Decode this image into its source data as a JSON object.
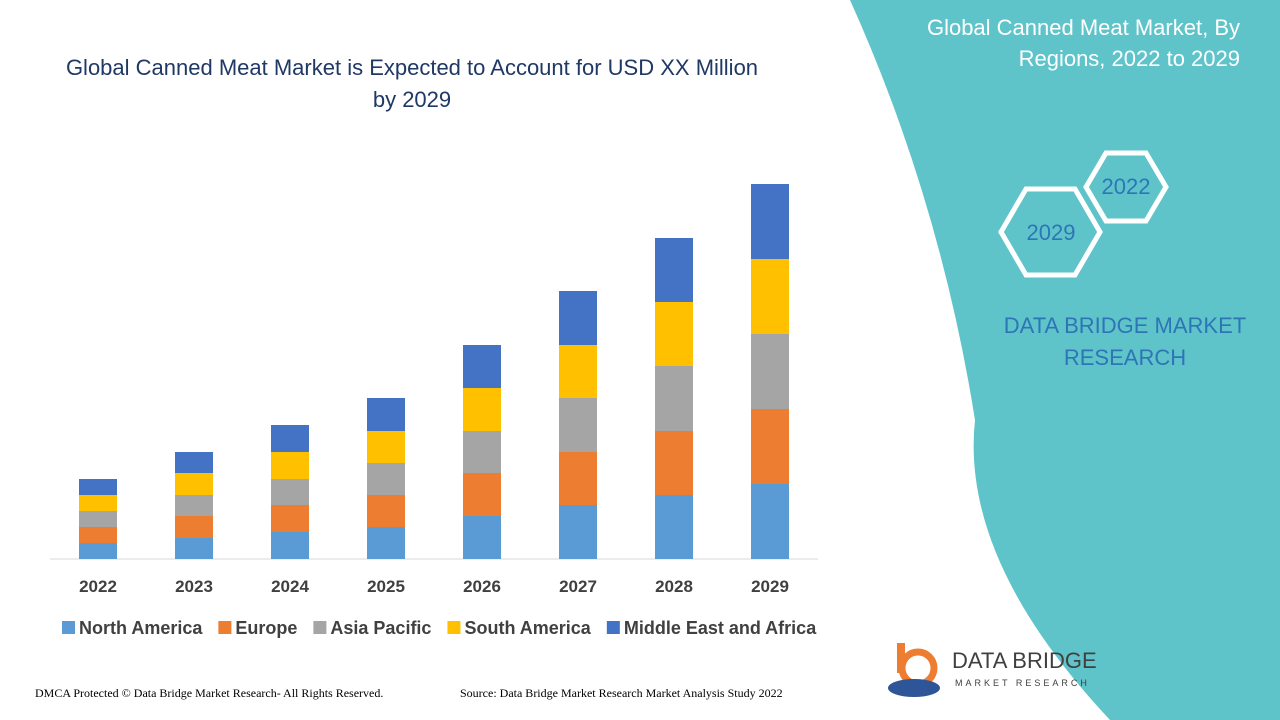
{
  "chart_data": {
    "type": "stacked-bar",
    "title": "Global Canned Meat Market is Expected to Account for USD XX Million by 2029",
    "categories": [
      "2022",
      "2023",
      "2024",
      "2025",
      "2026",
      "2027",
      "2028",
      "2029"
    ],
    "series": [
      {
        "name": "North America",
        "color": "#5b9bd5",
        "values": [
          16,
          21,
          27,
          32,
          43,
          54,
          64,
          75
        ]
      },
      {
        "name": "Europe",
        "color": "#ed7d31",
        "values": [
          16,
          22,
          27,
          32,
          43,
          53,
          64,
          75
        ]
      },
      {
        "name": "Asia Pacific",
        "color": "#a5a5a5",
        "values": [
          16,
          21,
          26,
          32,
          42,
          54,
          65,
          75
        ]
      },
      {
        "name": "South America",
        "color": "#ffc000",
        "values": [
          16,
          22,
          27,
          32,
          43,
          53,
          64,
          75
        ]
      },
      {
        "name": "Middle East and Africa",
        "color": "#4472c4",
        "values": [
          16,
          21,
          27,
          33,
          43,
          54,
          64,
          75
        ]
      }
    ]
  },
  "side_panel": {
    "title": "Global Canned Meat Market, By Regions, 2022 to 2029",
    "hexagon_labels": [
      "2022",
      "2029"
    ],
    "brand": "DATA BRIDGE MARKET RESEARCH"
  },
  "logo": {
    "name": "DATA BRIDGE",
    "tagline": "MARKET RESEARCH"
  },
  "footer": {
    "copyright": "DMCA Protected © Data Bridge Market Research- All Rights Reserved.",
    "source": "Source: Data Bridge Market Research Market Analysis Study 2022"
  }
}
